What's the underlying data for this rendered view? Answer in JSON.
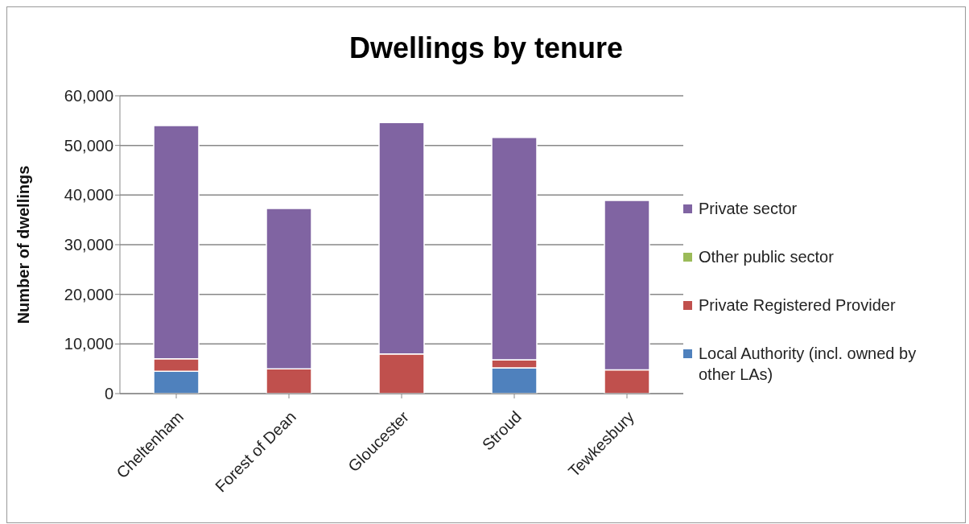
{
  "chart_data": {
    "type": "bar",
    "title": "Dwellings by tenure",
    "ylabel": "Number of dwellings",
    "categories": [
      "Cheltenham",
      "Forest of Dean",
      "Gloucester",
      "Stroud",
      "Tewkesbury"
    ],
    "stacked": true,
    "series": [
      {
        "name": "Local Authority (incl. owned by other LAs)",
        "color": "#4f81bd",
        "values": [
          4500,
          0,
          0,
          5200,
          0
        ]
      },
      {
        "name": "Private Registered Provider",
        "color": "#c0504d",
        "values": [
          2500,
          5000,
          8000,
          1600,
          4800
        ]
      },
      {
        "name": "Other public sector",
        "color": "#9bbb59",
        "values": [
          0,
          0,
          0,
          0,
          0
        ]
      },
      {
        "name": "Private sector",
        "color": "#8064a2",
        "values": [
          47000,
          32300,
          46600,
          44800,
          34100
        ]
      }
    ],
    "ylim": [
      0,
      60000
    ],
    "yticks": [
      0,
      {
        "value": 10000,
        "label": "10,000"
      },
      {
        "value": 20000,
        "label": "20,000"
      },
      {
        "value": 30000,
        "label": "30,000"
      },
      {
        "value": 40000,
        "label": "40,000"
      },
      {
        "value": 50000,
        "label": "50,000"
      },
      {
        "value": 60000,
        "label": "60,000"
      }
    ],
    "grid": "y",
    "legend": "right"
  }
}
